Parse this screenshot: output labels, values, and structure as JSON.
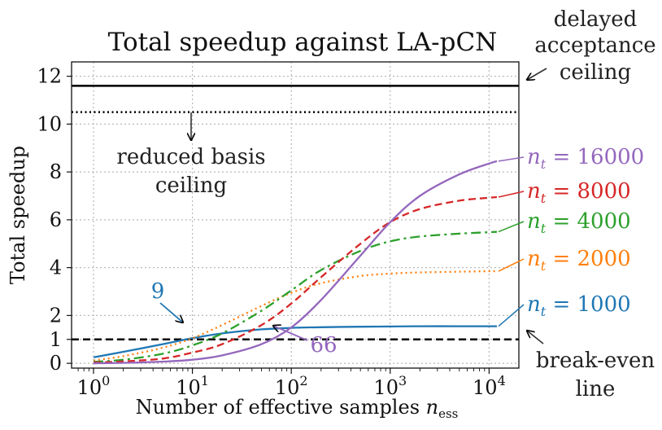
{
  "chart_data": {
    "type": "line",
    "title": "Total speedup against LA-pCN",
    "xlabel_main": "Number of effective samples ",
    "xlabel_var": "n",
    "xlabel_sub": "ess",
    "ylabel": "Total speedup",
    "xscale": "log",
    "xlim": [
      0.6,
      20000
    ],
    "ylim": [
      -0.2,
      12.6
    ],
    "grid": true,
    "x_ticks": [
      {
        "value": 1,
        "base": "10",
        "exp": "0"
      },
      {
        "value": 10,
        "base": "10",
        "exp": "1"
      },
      {
        "value": 100,
        "base": "10",
        "exp": "2"
      },
      {
        "value": 1000,
        "base": "10",
        "exp": "3"
      },
      {
        "value": 10000,
        "base": "10",
        "exp": "4"
      }
    ],
    "y_ticks": [
      0,
      1,
      2,
      4,
      6,
      8,
      10,
      12
    ],
    "y_tick_labels": [
      "0",
      "1",
      "2",
      "4",
      "6",
      "8",
      "10",
      "12"
    ],
    "reference_lines": [
      {
        "name": "delayed-acceptance-ceiling",
        "y": 11.6,
        "style": "solid"
      },
      {
        "name": "reduced-basis-ceiling",
        "y": 10.5,
        "style": "dotted"
      },
      {
        "name": "break-even-line",
        "y": 1.0,
        "style": "dashed"
      }
    ],
    "series": [
      {
        "name": "n_t = 1000",
        "label_lhs": "n",
        "label_sub": "t",
        "label_rhs": " = 1000",
        "color": "#1f77b4",
        "style": "solid",
        "x": [
          1,
          2,
          5,
          10,
          20,
          50,
          100,
          200,
          500,
          1000,
          2000,
          5000,
          10000,
          12000
        ],
        "y": [
          0.25,
          0.48,
          0.8,
          1.05,
          1.25,
          1.42,
          1.48,
          1.51,
          1.53,
          1.54,
          1.55,
          1.55,
          1.55,
          1.55
        ]
      },
      {
        "name": "n_t = 2000",
        "label_lhs": "n",
        "label_sub": "t",
        "label_rhs": " = 2000",
        "color": "#ff7f0e",
        "style": "dotted",
        "x": [
          1,
          2,
          5,
          10,
          20,
          50,
          100,
          200,
          500,
          1000,
          2000,
          5000,
          10000,
          12000
        ],
        "y": [
          0.12,
          0.3,
          0.65,
          1.05,
          1.6,
          2.4,
          2.95,
          3.35,
          3.65,
          3.75,
          3.8,
          3.83,
          3.85,
          3.85
        ]
      },
      {
        "name": "n_t = 4000",
        "label_lhs": "n",
        "label_sub": "t",
        "label_rhs": " = 4000",
        "color": "#2ca02c",
        "style": "dashdot",
        "x": [
          1,
          2,
          5,
          10,
          20,
          50,
          100,
          200,
          500,
          1000,
          2000,
          5000,
          10000,
          12000
        ],
        "y": [
          0.06,
          0.15,
          0.4,
          0.75,
          1.25,
          2.2,
          3.05,
          3.9,
          4.7,
          5.1,
          5.3,
          5.42,
          5.48,
          5.5
        ]
      },
      {
        "name": "n_t = 8000",
        "label_lhs": "n",
        "label_sub": "t",
        "label_rhs": " = 8000",
        "color": "#d62728",
        "style": "dashed",
        "x": [
          1,
          2,
          5,
          10,
          20,
          50,
          100,
          200,
          500,
          1000,
          2000,
          5000,
          10000,
          12000
        ],
        "y": [
          0.03,
          0.08,
          0.2,
          0.45,
          0.8,
          1.6,
          2.5,
          3.6,
          5.0,
          5.9,
          6.45,
          6.8,
          6.92,
          6.95
        ]
      },
      {
        "name": "n_t = 16000",
        "label_lhs": "n",
        "label_sub": "t",
        "label_rhs": " = 16000",
        "color": "#9467bd",
        "style": "solid",
        "x": [
          1,
          2,
          5,
          10,
          20,
          50,
          100,
          200,
          500,
          1000,
          2000,
          5000,
          10000,
          12000
        ],
        "y": [
          0.0,
          0.02,
          0.07,
          0.15,
          0.33,
          0.8,
          1.5,
          2.65,
          4.5,
          5.9,
          7.0,
          7.9,
          8.35,
          8.45
        ]
      }
    ],
    "annotations": {
      "da_ceiling": [
        "delayed",
        "acceptance",
        "ceiling"
      ],
      "rb_ceiling": [
        "reduced basis",
        "ceiling"
      ],
      "break_even": [
        "break-even",
        "line"
      ],
      "crossing_1000": {
        "text": "9",
        "x": 9,
        "y": 1.0,
        "color": "#1f77b4"
      },
      "crossing_16000": {
        "text": "66",
        "x": 66,
        "y": 1.0,
        "color": "#9467bd"
      }
    }
  }
}
